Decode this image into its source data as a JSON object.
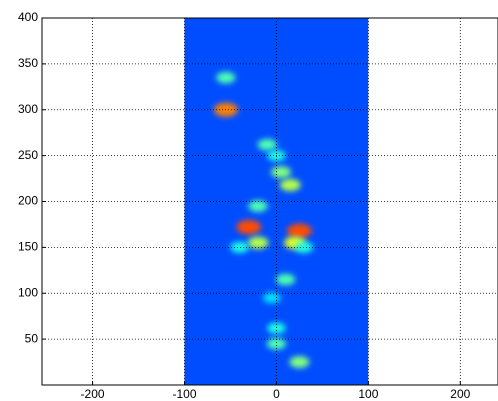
{
  "chart_data": {
    "type": "heatmap",
    "xlim": [
      -255,
      241
    ],
    "ylim": [
      0,
      400
    ],
    "xticks": [
      -200,
      -100,
      0,
      100,
      200
    ],
    "yticks": [
      50,
      100,
      150,
      200,
      250,
      300,
      350,
      400
    ],
    "grid": true,
    "image_xlim": [
      -100,
      100
    ],
    "image_ylim": [
      0,
      400
    ],
    "colormap": "jet",
    "spots": {
      "x": [
        -55,
        -30,
        25,
        20,
        -20,
        15,
        5,
        -10,
        -55,
        10,
        0,
        25,
        0,
        -20,
        0,
        -40,
        30,
        -5
      ],
      "y": [
        300,
        172,
        168,
        155,
        155,
        218,
        232,
        262,
        335,
        115,
        45,
        25,
        62,
        195,
        250,
        150,
        150,
        95
      ],
      "intensity": [
        0.75,
        0.8,
        0.8,
        0.6,
        0.55,
        0.55,
        0.5,
        0.45,
        0.45,
        0.45,
        0.45,
        0.5,
        0.4,
        0.45,
        0.4,
        0.4,
        0.4,
        0.35
      ]
    }
  }
}
